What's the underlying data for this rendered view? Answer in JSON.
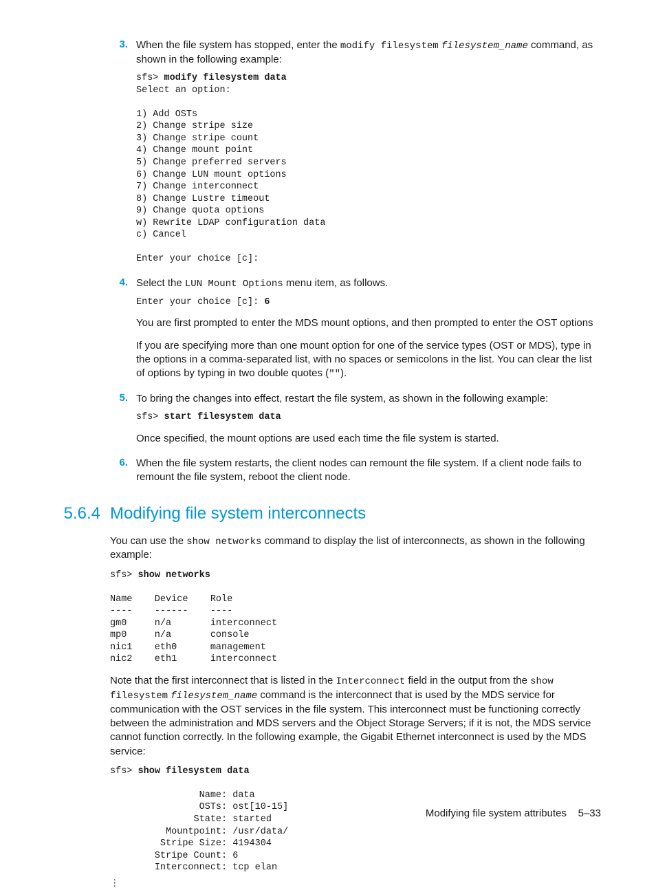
{
  "colors": {
    "accent": "#0096d6",
    "text": "#1a1a1a",
    "background": "#ffffff"
  },
  "typography": {
    "body_family": "Arial, Helvetica, sans-serif",
    "mono_family": "Courier New, Courier, monospace",
    "body_size_pt": 11,
    "mono_size_pt": 10,
    "heading_size_pt": 18
  },
  "steps": {
    "s3": {
      "num": "3.",
      "text_pre": "When the file system has stopped, enter the ",
      "cmd1": "modify filesystem",
      "cmd2": "filesystem_name",
      "text_post": " command, as shown in the following example:",
      "code_prompt": "sfs> ",
      "code_bold": "modify filesystem data",
      "code_body": "Select an option:\n\n1) Add OSTs\n2) Change stripe size\n3) Change stripe count\n4) Change mount point\n5) Change preferred servers\n6) Change LUN mount options\n7) Change interconnect\n8) Change Lustre timeout\n9) Change quota options\nw) Rewrite LDAP configuration data\nc) Cancel\n\nEnter your choice [c]:"
    },
    "s4": {
      "num": "4.",
      "text_pre": "Select the ",
      "cmd": "LUN Mount Options",
      "text_post": " menu item, as follows.",
      "code_line_pre": "Enter your choice [c]: ",
      "code_line_bold": "6",
      "p1": "You are first prompted to enter the MDS mount options, and then prompted to enter the OST options",
      "p2_pre": "If you are specifying more than one mount option for one of the service types (OST or MDS), type in the options in a comma-separated list, with no spaces or semicolons in the list. You can clear the list of options by typing in two double quotes (",
      "p2_mono": "\"\"",
      "p2_post": ")."
    },
    "s5": {
      "num": "5.",
      "text": "To bring the changes into effect, restart the file system, as shown in the following example:",
      "code_prompt": "sfs> ",
      "code_bold": "start filesystem data",
      "p1": "Once specified, the mount options are used each time the file system is started."
    },
    "s6": {
      "num": "6.",
      "text": "When the file system restarts, the client nodes can remount the file system. If a client node fails to remount the file system, reboot the client node."
    }
  },
  "section": {
    "num": "5.6.4",
    "title": "Modifying file system interconnects",
    "p1_pre": "You can use the ",
    "p1_cmd": "show networks",
    "p1_post": " command to display the list of interconnects, as shown in the following example:",
    "code1_prompt": "sfs> ",
    "code1_bold": "show networks",
    "code1_body": "\nName    Device    Role\n----    ------    ----\ngm0     n/a       interconnect\nmp0     n/a       console\nnic1    eth0      management\nnic2    eth1      interconnect",
    "p2_pre": "Note that the first interconnect that is listed in the ",
    "p2_m1": "Interconnect",
    "p2_mid1": " field in the output from the ",
    "p2_m2": "show filesystem",
    "p2_m3": "filesystem_name",
    "p2_post": " command is the interconnect that is used by the MDS service for communication with the OST services in the file system. This interconnect must be functioning correctly between the administration and MDS servers and the Object Storage Servers; if it is not, the MDS service cannot function correctly. In the following example, the Gigabit Ethernet interconnect is used by the MDS service:",
    "code2_prompt": "sfs> ",
    "code2_bold": "show filesystem data",
    "code2_body": "\n                Name: data\n                OSTs: ost[10-15]\n               State: started\n          Mountpoint: /usr/data/\n         Stripe Size: 4194304\n        Stripe Count: 6\n        Interconnect: tcp elan",
    "ellipsis": "⋮"
  },
  "footer": {
    "label": "Modifying file system attributes",
    "page": "5–33"
  }
}
